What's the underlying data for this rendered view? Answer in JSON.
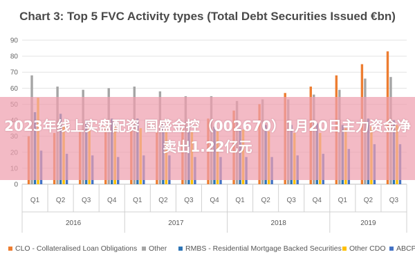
{
  "chart_data": {
    "type": "bar",
    "title": "Chart 3: Top 5 FVC Activity types (Total Debt Securities Issued €bn)",
    "xlabel": "",
    "ylabel": "",
    "ylim": [
      0,
      90
    ],
    "y_ticks": [
      "0",
      "10",
      "20",
      "30",
      "40",
      "50",
      "60",
      "70",
      "80",
      "90"
    ],
    "grid": true,
    "legend_position": "bottom",
    "categories": [
      "Q1",
      "Q2",
      "Q3",
      "Q4",
      "Q1",
      "Q2",
      "Q3",
      "Q4",
      "Q1",
      "Q2",
      "Q3",
      "Q4",
      "Q1",
      "Q2",
      "Q3"
    ],
    "years": [
      {
        "label": "2016",
        "quarters": 4
      },
      {
        "label": "2017",
        "quarters": 4
      },
      {
        "label": "2018",
        "quarters": 4
      },
      {
        "label": "2019",
        "quarters": 3
      }
    ],
    "series": [
      {
        "name": "CLO - Collateralised Loan Obligations",
        "color": "#ed7d31",
        "values": [
          30,
          32,
          33,
          37,
          34,
          33,
          35,
          41,
          46,
          50,
          57,
          61,
          68,
          75,
          83
        ]
      },
      {
        "name": "Other",
        "color": "#a5a5a5",
        "values": [
          68,
          61,
          59,
          60,
          61,
          58,
          55,
          55,
          52,
          53,
          53,
          56,
          59,
          66,
          67
        ]
      },
      {
        "name": "RMBS - Residential Mortgage Backed Securities",
        "color": "#2e75b6",
        "values": [
          45,
          44,
          40,
          41,
          41,
          38,
          37,
          36,
          35,
          37,
          37,
          38,
          37,
          41,
          40
        ]
      },
      {
        "name": "Other CDO",
        "color": "#ffc000",
        "values": [
          54,
          36,
          35,
          36,
          35,
          34,
          33,
          33,
          34,
          33,
          32,
          32,
          35,
          36,
          37
        ]
      },
      {
        "name": "ABCP",
        "color": "#4472c4",
        "values": [
          21,
          19,
          18,
          17,
          18,
          18,
          17,
          17,
          17,
          17,
          18,
          19,
          22,
          25,
          25
        ]
      }
    ]
  },
  "banner": {
    "text": "2023年线上实盘配资 国盛金控（002670）1月20日主力资金净卖出1.22亿元"
  }
}
